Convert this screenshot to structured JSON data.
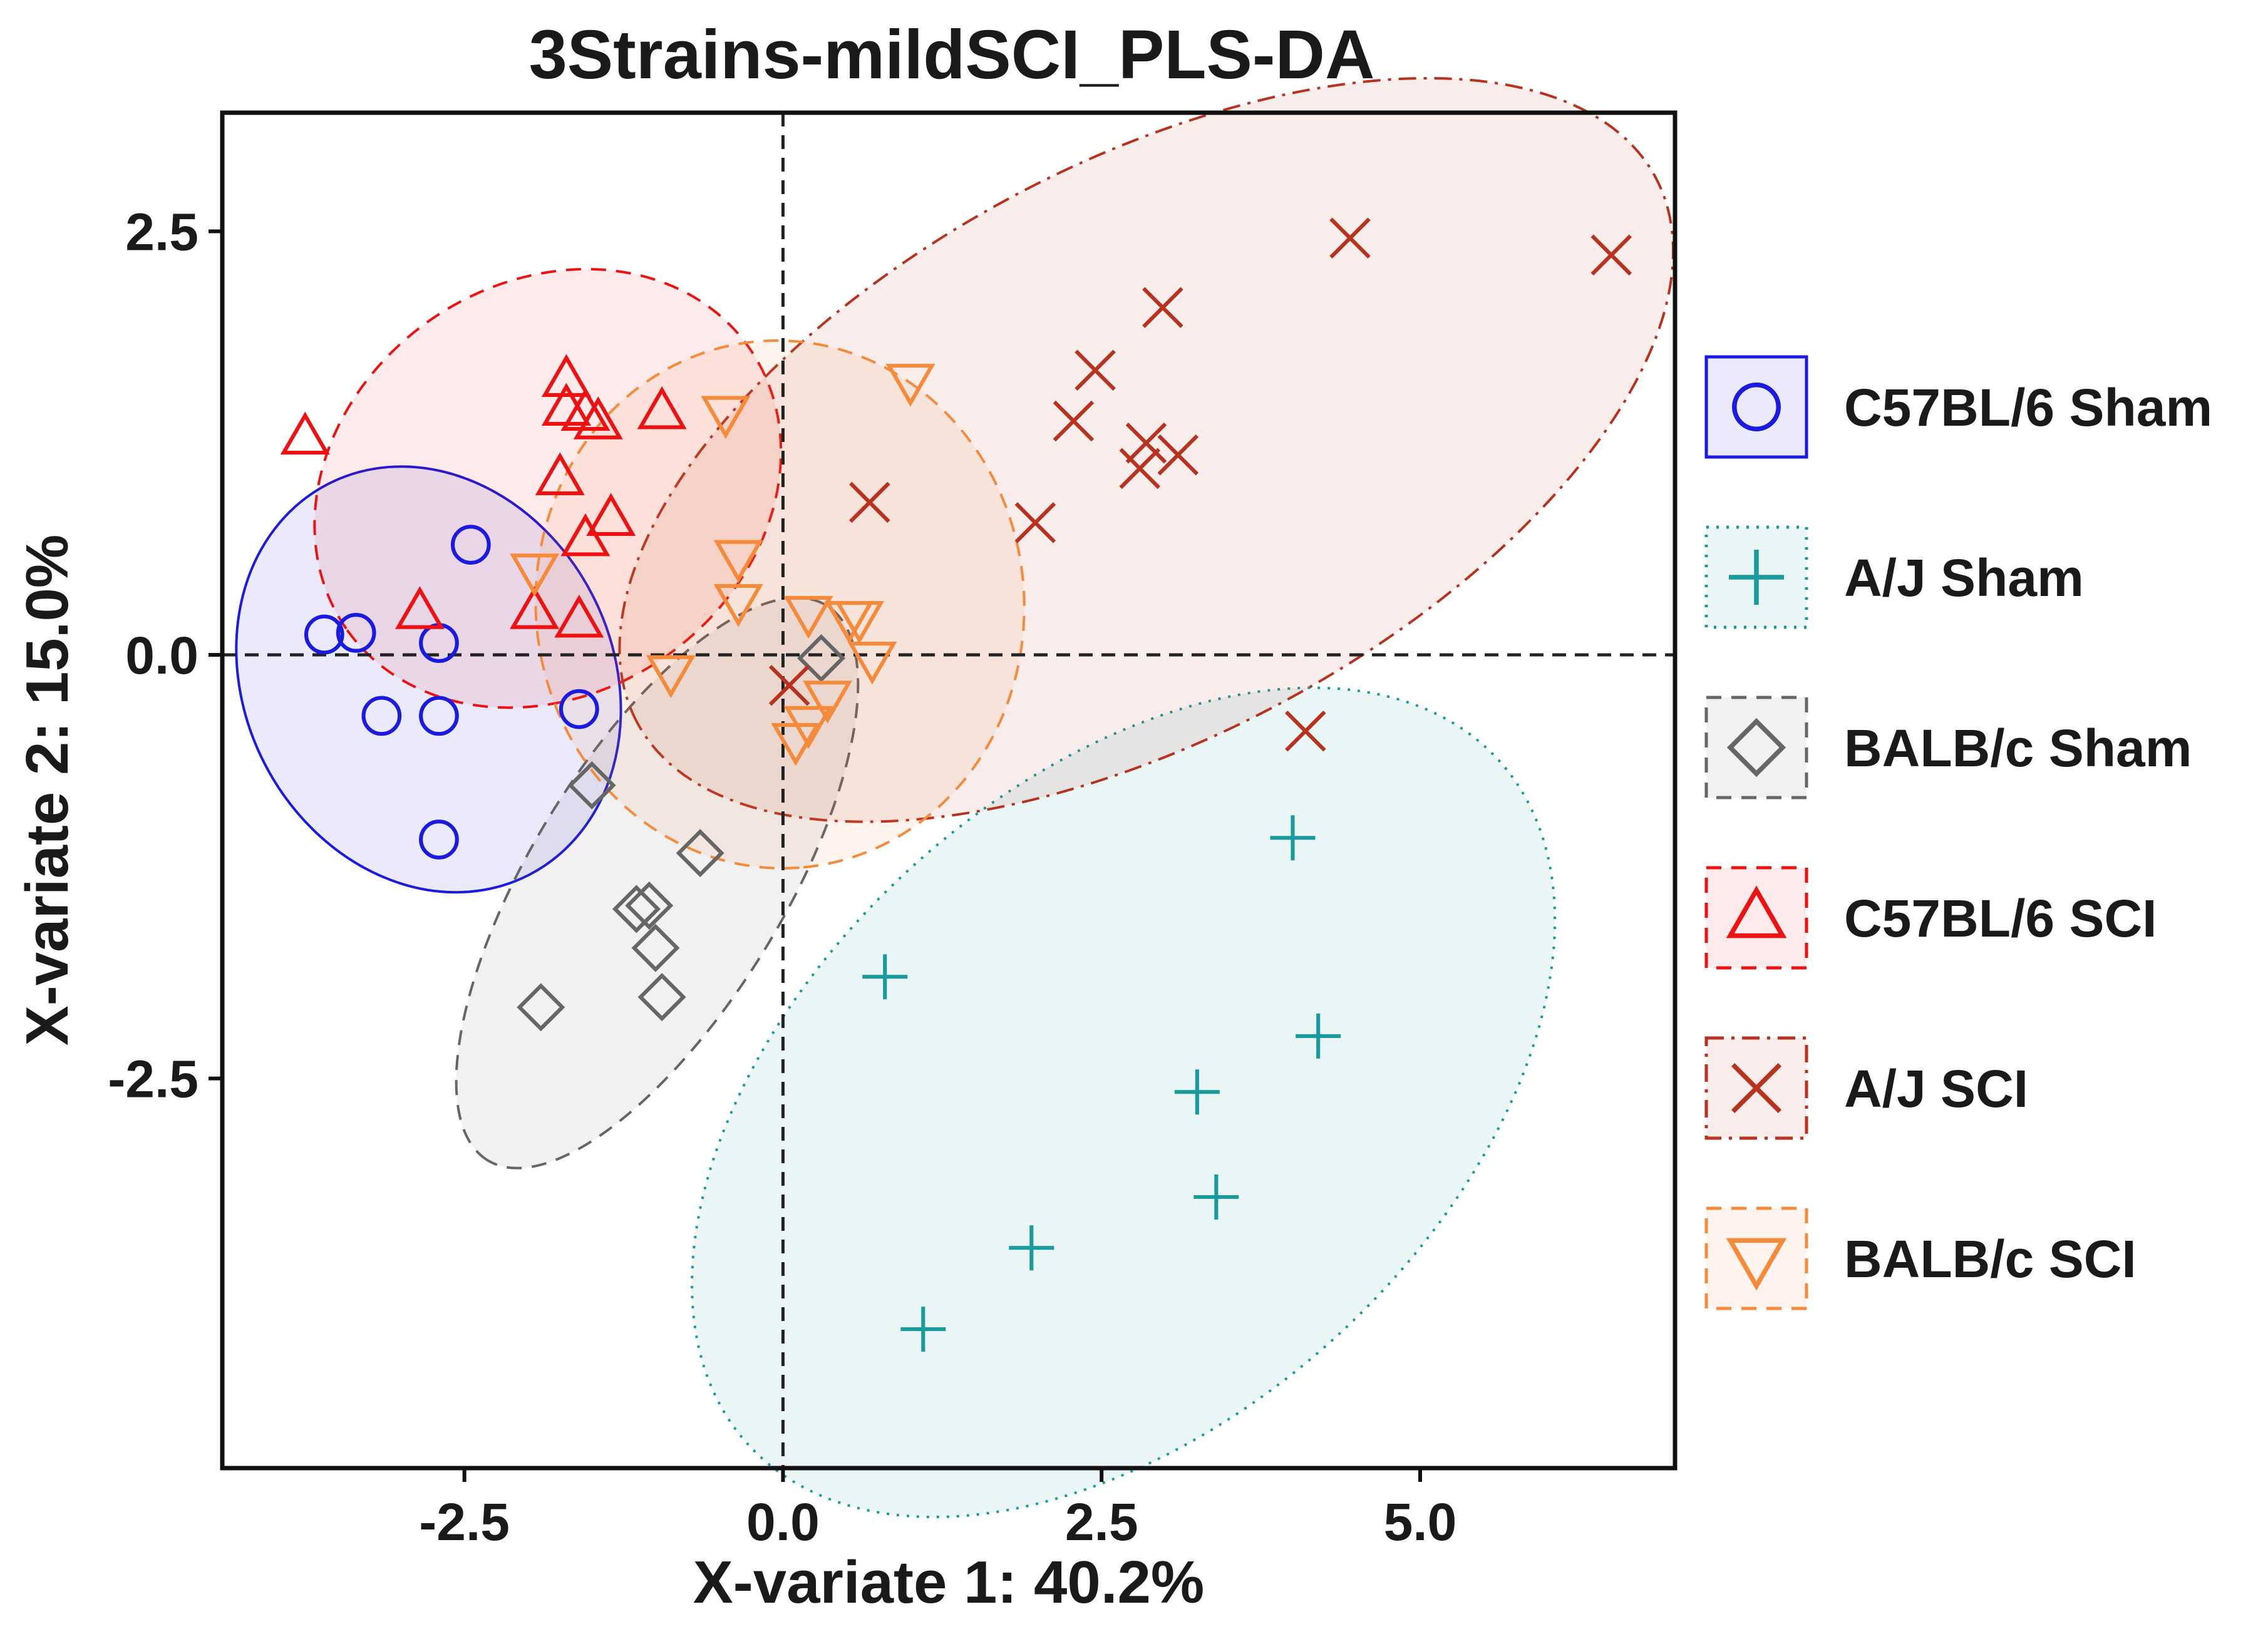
{
  "chart_data": {
    "type": "scatter",
    "title": "3Strains-mildSCI_PLS-DA",
    "xlabel": "X-variate 1: 40.2%",
    "ylabel": "X-variate 2: 15.0%",
    "xlim": [
      -4.4,
      7.0
    ],
    "ylim": [
      -4.8,
      3.2
    ],
    "xticks": [
      -2.5,
      0.0,
      2.5,
      5.0
    ],
    "yticks": [
      -2.5,
      0.0,
      2.5
    ],
    "xtick_labels": [
      "-2.5",
      "0.0",
      "2.5",
      "5.0"
    ],
    "ytick_labels": [
      "-2.5",
      "0.0",
      "2.5"
    ],
    "reference_lines": {
      "x": 0,
      "y": 0,
      "style": "dashed"
    },
    "grid": false,
    "legend_position": "right",
    "series": [
      {
        "name": "C57BL/6 Sham",
        "marker": "circle",
        "color": "#1a1ae0",
        "ellipse_style": "solid",
        "points": [
          [
            -3.6,
            0.12
          ],
          [
            -3.35,
            0.13
          ],
          [
            -2.7,
            0.07
          ],
          [
            -2.45,
            0.65
          ],
          [
            -3.15,
            -0.36
          ],
          [
            -2.7,
            -0.36
          ],
          [
            -1.6,
            -0.32
          ],
          [
            -2.7,
            -1.09
          ]
        ]
      },
      {
        "name": "A/J Sham",
        "marker": "plus",
        "color": "#1a9a9a",
        "ellipse_style": "dotted",
        "points": [
          [
            4.0,
            -1.08
          ],
          [
            0.8,
            -1.9
          ],
          [
            4.2,
            -2.25
          ],
          [
            3.25,
            -2.58
          ],
          [
            3.4,
            -3.2
          ],
          [
            1.95,
            -3.5
          ],
          [
            1.1,
            -3.98
          ]
        ]
      },
      {
        "name": "BALB/c Sham",
        "marker": "diamond",
        "color": "#666666",
        "ellipse_style": "dashed",
        "points": [
          [
            0.3,
            -0.02
          ],
          [
            -1.5,
            -0.77
          ],
          [
            -0.65,
            -1.17
          ],
          [
            -1.15,
            -1.5
          ],
          [
            -1.05,
            -1.48
          ],
          [
            -1.0,
            -1.73
          ],
          [
            -0.95,
            -2.02
          ],
          [
            -1.9,
            -2.08
          ]
        ]
      },
      {
        "name": "C57BL/6 SCI",
        "marker": "triangle-up",
        "color": "#ee1111",
        "ellipse_style": "dashed",
        "points": [
          [
            -3.75,
            1.28
          ],
          [
            -1.7,
            1.62
          ],
          [
            -1.7,
            1.45
          ],
          [
            -1.55,
            1.42
          ],
          [
            -1.45,
            1.37
          ],
          [
            -0.95,
            1.43
          ],
          [
            -1.75,
            1.04
          ],
          [
            -1.35,
            0.8
          ],
          [
            -1.55,
            0.68
          ],
          [
            -2.85,
            0.25
          ],
          [
            -1.95,
            0.25
          ],
          [
            -1.6,
            0.2
          ]
        ]
      },
      {
        "name": "A/J SCI",
        "marker": "x",
        "color": "#b83220",
        "ellipse_style": "dashdot",
        "points": [
          [
            4.45,
            2.46
          ],
          [
            6.5,
            2.36
          ],
          [
            2.98,
            2.05
          ],
          [
            2.45,
            1.68
          ],
          [
            2.28,
            1.38
          ],
          [
            2.85,
            1.25
          ],
          [
            3.1,
            1.18
          ],
          [
            2.8,
            1.1
          ],
          [
            0.68,
            0.9
          ],
          [
            1.98,
            0.78
          ],
          [
            0.05,
            -0.18
          ],
          [
            4.1,
            -0.45
          ]
        ]
      },
      {
        "name": "BALB/c SCI",
        "marker": "triangle-down",
        "color": "#f58a3a",
        "ellipse_style": "dashed",
        "points": [
          [
            1.0,
            1.62
          ],
          [
            -0.45,
            1.43
          ],
          [
            -1.95,
            0.5
          ],
          [
            -0.35,
            0.58
          ],
          [
            -0.35,
            0.32
          ],
          [
            0.2,
            0.25
          ],
          [
            0.52,
            0.22
          ],
          [
            0.6,
            0.22
          ],
          [
            0.7,
            -0.02
          ],
          [
            -0.88,
            -0.1
          ],
          [
            0.35,
            -0.25
          ],
          [
            0.2,
            -0.4
          ],
          [
            0.1,
            -0.5
          ]
        ]
      }
    ]
  }
}
